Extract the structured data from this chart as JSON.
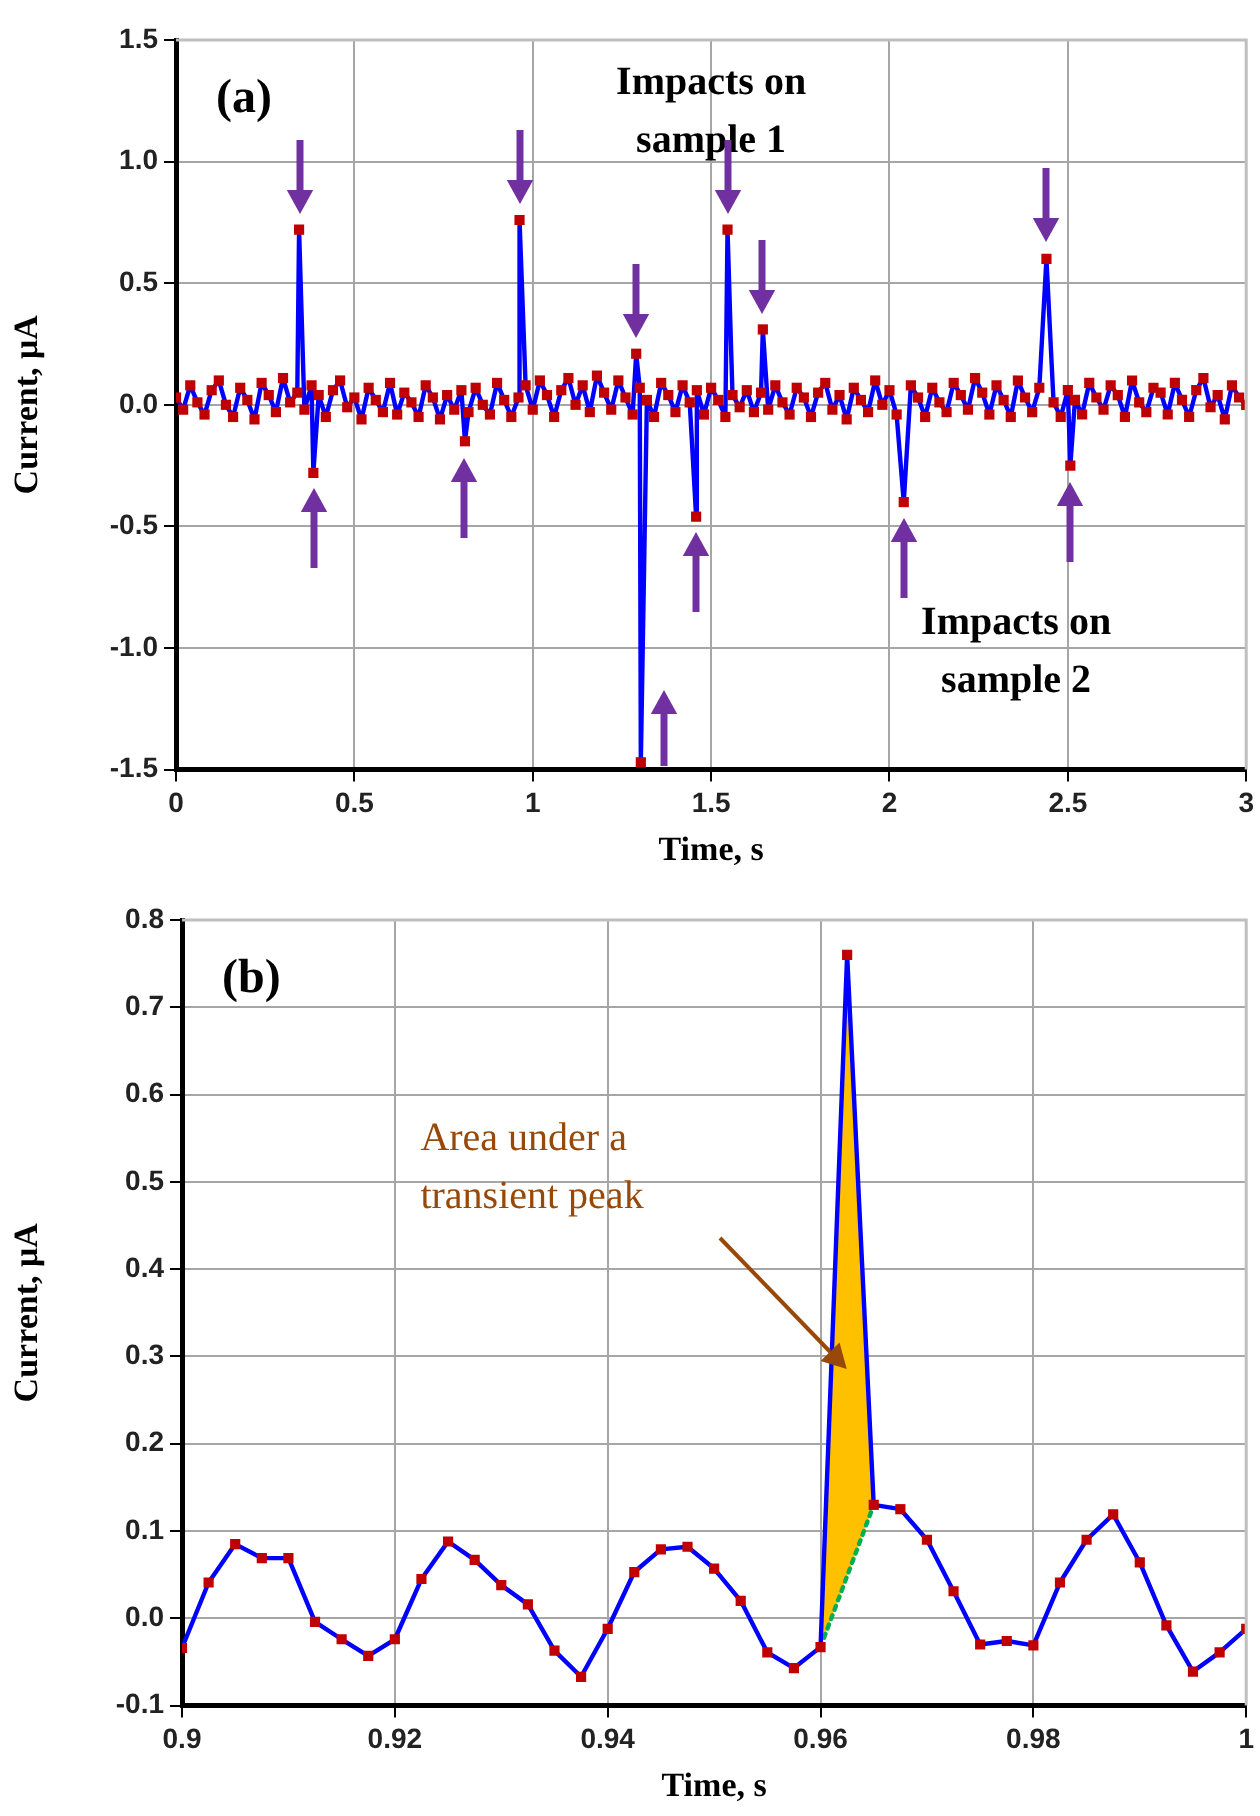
{
  "chart_data": [
    {
      "type": "line",
      "title": "(a)",
      "xlabel": "Time, s",
      "ylabel": "Current, μA",
      "xlim": [
        0,
        3
      ],
      "xticks": [
        0,
        0.5,
        1,
        1.5,
        2,
        2.5,
        3
      ],
      "ylim": [
        -1.5,
        1.5
      ],
      "yticks": [
        {
          "value": -1.5,
          "label": "-1.5"
        },
        {
          "value": -1,
          "label": "-1.0"
        },
        {
          "value": -0.5,
          "label": "-0.5"
        },
        {
          "value": 0,
          "label": "0.0"
        },
        {
          "value": 0.5,
          "label": "0.5"
        },
        {
          "value": 1,
          "label": "1.0"
        },
        {
          "value": 1.5,
          "label": "1.5"
        }
      ],
      "grid": true,
      "marker": "square",
      "line_style": "solid",
      "annotations": [
        "Impacts on sample 1",
        "Impacts on sample 2"
      ],
      "series": [
        {
          "type": "line",
          "color": "#0000ff",
          "colors": [
            "#c00000",
            "#c00000",
            "#c00000",
            "#c00000",
            "#c00000",
            "#c00000",
            "#c00000",
            "#c00000",
            "#c00000",
            "#c00000",
            "#c00000",
            "#c00000",
            "#c00000",
            "#c00000",
            "#c00000",
            "#c00000",
            "#c00000",
            "#c00000",
            "#c00000",
            "#c00000",
            "#c00000",
            "#c00000",
            "#c00000",
            "#c00000",
            "#c00000",
            "#c00000",
            "#c00000",
            "#c00000",
            "#c00000",
            "#c00000",
            "#c00000",
            "#c00000",
            "#c00000",
            "#c00000",
            "#c00000",
            "#c00000",
            "#c00000",
            "#c00000",
            "#c00000",
            "#c00000",
            "#c00000",
            "#c00000",
            "#c00000",
            "#c00000",
            "#c00000",
            "#c00000",
            "#c00000",
            "#c00000",
            "#c00000",
            "#c00000",
            "#c00000",
            "#c00000",
            "#c00000",
            "#c00000",
            "#c00000",
            "#c00000",
            "#c00000",
            "#c00000",
            "#c00000",
            "#c00000",
            "#c00000",
            "#c00000",
            "#c00000",
            "#c00000",
            "#c00000",
            "#c00000",
            "#c00000",
            "#c00000",
            "#c00000",
            "#c00000",
            "#c00000",
            "#c00000",
            "#c00000",
            "#c00000",
            "#c00000",
            "#c00000",
            "#c00000",
            "#c00000",
            "#c00000",
            "#c00000",
            "#c00000",
            "#c00000",
            "#c00000",
            "#c00000",
            "#c00000",
            "#c00000",
            "#c00000",
            "#c00000",
            "#c00000",
            "#c00000",
            "#c00000",
            "#c00000",
            "#c00000",
            "#c00000",
            "#c00000",
            "#c00000",
            "#c00000",
            "#c00000",
            "#c00000",
            "#c00000",
            "#c00000",
            "#c00000",
            "#c00000",
            "#c00000",
            "#c00000",
            "#c00000",
            "#c00000",
            "#c00000",
            "#c00000",
            "#c00000",
            "#c00000",
            "#c00000",
            "#c00000",
            "#c00000",
            "#c00000",
            "#c00000",
            "#c00000",
            "#c00000",
            "#c00000",
            "#c00000",
            "#c00000",
            "#c00000",
            "#c00000",
            "#c00000",
            "#c00000",
            "#c00000",
            "#c00000",
            "#c00000",
            "#c00000",
            "#c00000",
            "#c00000",
            "#c00000",
            "#c00000",
            "#c00000",
            "#c00000",
            "#c00000",
            "#c00000",
            "#c00000",
            "#c00000",
            "#c00000",
            "#c00000",
            "#c00000",
            "#c00000",
            "#c00000",
            "#c00000",
            "#c00000",
            "#c00000",
            "#c00000",
            "#c00000",
            "#c00000",
            "#c00000",
            "#c00000",
            "#c00000",
            "#c00000",
            "#c00000",
            "#c00000",
            "#c00000",
            "#c00000",
            "#c00000",
            "#c00000",
            "#c00000"
          ],
          "x": [
            0,
            0.02,
            0.04,
            0.06,
            0.08,
            0.1,
            0.12,
            0.14,
            0.16,
            0.18,
            0.2,
            0.22,
            0.24,
            0.26,
            0.28,
            0.3,
            0.32,
            0.34,
            0.345,
            0.36,
            0.38,
            0.385,
            0.4,
            0.42,
            0.44,
            0.46,
            0.48,
            0.5,
            0.52,
            0.54,
            0.56,
            0.58,
            0.6,
            0.62,
            0.64,
            0.66,
            0.68,
            0.7,
            0.72,
            0.74,
            0.76,
            0.78,
            0.8,
            0.81,
            0.82,
            0.84,
            0.86,
            0.88,
            0.9,
            0.92,
            0.94,
            0.96,
            0.963,
            0.98,
            1,
            1.02,
            1.04,
            1.06,
            1.08,
            1.1,
            1.12,
            1.14,
            1.16,
            1.18,
            1.2,
            1.22,
            1.24,
            1.26,
            1.28,
            1.29,
            1.3,
            1.303,
            1.32,
            1.34,
            1.36,
            1.38,
            1.4,
            1.42,
            1.44,
            1.458,
            1.46,
            1.48,
            1.5,
            1.52,
            1.54,
            1.546,
            1.56,
            1.58,
            1.6,
            1.62,
            1.64,
            1.645,
            1.66,
            1.68,
            1.7,
            1.72,
            1.74,
            1.76,
            1.78,
            1.8,
            1.82,
            1.84,
            1.86,
            1.88,
            1.9,
            1.92,
            1.94,
            1.96,
            1.98,
            2,
            2.02,
            2.04,
            2.06,
            2.08,
            2.1,
            2.12,
            2.14,
            2.16,
            2.18,
            2.2,
            2.22,
            2.24,
            2.26,
            2.28,
            2.3,
            2.32,
            2.34,
            2.36,
            2.38,
            2.4,
            2.42,
            2.44,
            2.46,
            2.48,
            2.5,
            2.507,
            2.52,
            2.54,
            2.56,
            2.58,
            2.6,
            2.62,
            2.64,
            2.66,
            2.68,
            2.7,
            2.72,
            2.74,
            2.76,
            2.78,
            2.8,
            2.82,
            2.84,
            2.86,
            2.88,
            2.9,
            2.92,
            2.94,
            2.96,
            2.98,
            3
          ],
          "values": [
            0.03,
            -0.02,
            0.08,
            0.01,
            -0.04,
            0.06,
            0.1,
            0,
            -0.05,
            0.07,
            0.02,
            -0.06,
            0.09,
            0.04,
            -0.03,
            0.11,
            0.01,
            0.05,
            0.72,
            -0.02,
            0.08,
            -0.28,
            0.04,
            -0.05,
            0.06,
            0.1,
            -0.01,
            0.03,
            -0.06,
            0.07,
            0.02,
            -0.03,
            0.09,
            -0.04,
            0.05,
            0.01,
            -0.05,
            0.08,
            0.03,
            -0.06,
            0.04,
            -0.02,
            0.06,
            -0.15,
            -0.03,
            0.07,
            0,
            -0.04,
            0.09,
            0.02,
            -0.05,
            0.03,
            0.76,
            0.08,
            -0.02,
            0.1,
            0.04,
            -0.05,
            0.06,
            0.11,
            0,
            0.08,
            -0.03,
            0.12,
            0.05,
            -0.02,
            0.1,
            0.03,
            -0.04,
            0.21,
            0.07,
            -1.47,
            0.02,
            -0.05,
            0.09,
            0.04,
            -0.03,
            0.08,
            0.01,
            -0.46,
            0.06,
            -0.04,
            0.07,
            0.02,
            -0.05,
            0.72,
            0.04,
            -0.01,
            0.06,
            -0.03,
            0.05,
            0.31,
            -0.02,
            0.08,
            0.01,
            -0.04,
            0.07,
            0.03,
            -0.05,
            0.05,
            0.09,
            -0.02,
            0.04,
            -0.06,
            0.07,
            0.02,
            -0.03,
            0.1,
            0,
            0.06,
            -0.04,
            -0.4,
            0.08,
            0.03,
            -0.05,
            0.07,
            0.01,
            -0.03,
            0.09,
            0.04,
            -0.02,
            0.11,
            0.05,
            -0.04,
            0.08,
            0.02,
            -0.05,
            0.1,
            0.03,
            -0.03,
            0.07,
            0.6,
            0.01,
            -0.05,
            0.06,
            -0.25,
            0.02,
            -0.04,
            0.09,
            0.03,
            -0.02,
            0.08,
            0.04,
            -0.05,
            0.1,
            0.01,
            -0.03,
            0.07,
            0.05,
            -0.04,
            0.09,
            0.02,
            -0.05,
            0.06,
            0.11,
            -0.01,
            0.04,
            -0.06,
            0.08,
            0.03,
            0
          ]
        }
      ]
    },
    {
      "type": "line",
      "title": "(b)",
      "xlabel": "Time, s",
      "ylabel": "Current, μA",
      "xlim": [
        0.9,
        1
      ],
      "xticks": [
        0.9,
        0.92,
        0.94,
        0.96,
        0.98,
        1
      ],
      "ylim": [
        -0.1,
        0.8
      ],
      "yticks": [
        -0.1,
        {
          "value": 0,
          "label": "0.0"
        },
        0.1,
        0.2,
        0.3,
        0.4,
        0.5,
        0.6,
        0.7,
        0.8
      ],
      "grid": true,
      "marker": "square",
      "line_style": "solid",
      "annotations": [
        "Area under a transient peak"
      ],
      "series": [
        {
          "type": "line",
          "color": "#0000ff",
          "colors": [
            "#c00000",
            "#c00000",
            "#c00000",
            "#c00000",
            "#c00000",
            "#c00000",
            "#c00000",
            "#c00000",
            "#c00000",
            "#c00000",
            "#c00000",
            "#c00000",
            "#c00000",
            "#c00000",
            "#c00000",
            "#c00000",
            "#c00000",
            "#c00000",
            "#c00000",
            "#c00000",
            "#c00000",
            "#c00000",
            "#c00000",
            "#c00000",
            "#c00000",
            "#c00000",
            "#c00000",
            "#c00000",
            "#c00000",
            "#c00000",
            "#c00000",
            "#c00000",
            "#c00000",
            "#c00000",
            "#c00000",
            "#c00000",
            "#c00000",
            "#c00000",
            "#c00000",
            "#c00000",
            "#c00000"
          ],
          "x": [
            0.9,
            0.9025,
            0.905,
            0.9075,
            0.91,
            0.9125,
            0.915,
            0.9175,
            0.92,
            0.9225,
            0.925,
            0.9275,
            0.93,
            0.9325,
            0.935,
            0.9375,
            0.94,
            0.9425,
            0.945,
            0.9475,
            0.95,
            0.9525,
            0.955,
            0.9575,
            0.96,
            0.9625,
            0.965,
            0.9675,
            0.97,
            0.9725,
            0.975,
            0.9775,
            0.98,
            0.9825,
            0.985,
            0.9875,
            0.99,
            0.9925,
            0.995,
            0.9975,
            1
          ],
          "values": [
            -0.034,
            0.041,
            0.085,
            0.069,
            0.069,
            -0.004,
            -0.024,
            -0.043,
            -0.024,
            0.045,
            0.088,
            0.067,
            0.038,
            0.016,
            -0.037,
            -0.067,
            -0.012,
            0.053,
            0.079,
            0.082,
            0.057,
            0.02,
            -0.039,
            -0.057,
            -0.033,
            0.76,
            0.13,
            0.125,
            0.09,
            0.031,
            -0.03,
            -0.026,
            -0.031,
            0.041,
            0.09,
            0.119,
            0.064,
            -0.008,
            -0.061,
            -0.039,
            -0.012
          ]
        },
        {
          "type": "area",
          "color": "#ffc000",
          "marker": "none",
          "x": [
            0.96,
            0.9625,
            0.965
          ],
          "values": [
            -0.033,
            0.76,
            0.13
          ]
        },
        {
          "type": "line",
          "color": "#00b050",
          "marker": "none",
          "line_style": "dotted",
          "x": [
            0.96,
            0.965
          ],
          "values": [
            -0.033,
            0.13
          ]
        }
      ]
    }
  ]
}
